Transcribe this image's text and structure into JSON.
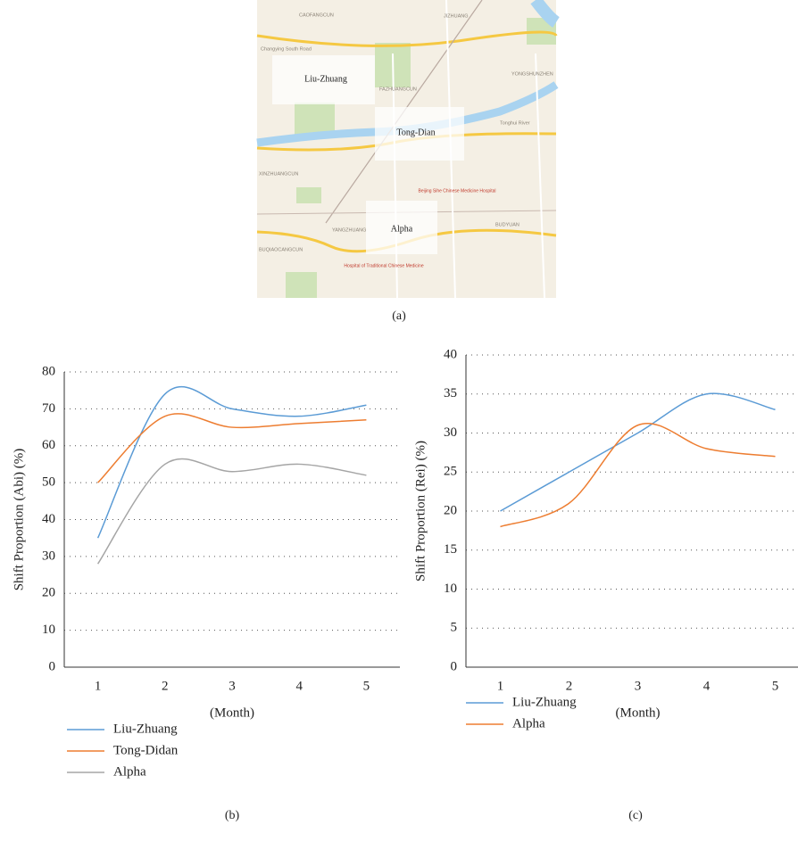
{
  "map": {
    "caption": "(a)",
    "regions": [
      "Liu-Zhuang",
      "Tong-Dian",
      "Alpha"
    ],
    "places": [
      "CAOFANGCUN",
      "JIZHUANG",
      "YONGSHUNZHEN",
      "FAZHUANGCUN",
      "XINZHUANGCUN",
      "BUDYUAN",
      "BUQIAOCANGCUN",
      "YANGZHUANG",
      "Beijing Sihe Chinese Medicine Hospital",
      "Hospital of Traditional Chinese Medicine",
      "Changying South Road",
      "Tonghui River"
    ]
  },
  "chart_data": [
    {
      "type": "line",
      "caption": "(b)",
      "y_label": "Shift Proportion (Abi) (%)",
      "x_label": "(Month)",
      "x": [
        1,
        2,
        3,
        4,
        5
      ],
      "xlim": [
        0.5,
        5.5
      ],
      "xticks": [
        1,
        2,
        3,
        4,
        5
      ],
      "ylim": [
        0,
        80
      ],
      "yticks": [
        0,
        10,
        20,
        30,
        40,
        50,
        60,
        70,
        80
      ],
      "grid": true,
      "smooth": true,
      "legend": "below",
      "series": [
        {
          "name": "Liu-Zhuang",
          "color": "#5b9bd5",
          "values": [
            35,
            74,
            70,
            68,
            71
          ]
        },
        {
          "name": "Tong-Didan",
          "color": "#ed7d31",
          "values": [
            50,
            68,
            65,
            66,
            67
          ]
        },
        {
          "name": "Alpha",
          "color": "#a5a5a5",
          "values": [
            28,
            55,
            53,
            55,
            52
          ]
        }
      ]
    },
    {
      "type": "line",
      "caption": "(c)",
      "y_label": "Shift Proportion (Rei) (%)",
      "x_label": "(Month)",
      "x": [
        1,
        2,
        3,
        4,
        5
      ],
      "xlim": [
        0.5,
        5.5
      ],
      "xticks": [
        1,
        2,
        3,
        4,
        5
      ],
      "ylim": [
        0,
        40
      ],
      "yticks": [
        0,
        5,
        10,
        15,
        20,
        25,
        30,
        35,
        40
      ],
      "grid": true,
      "smooth": true,
      "legend": "below",
      "series": [
        {
          "name": "Liu-Zhuang",
          "color": "#5b9bd5",
          "values": [
            20,
            25,
            30,
            35,
            33
          ]
        },
        {
          "name": "Alpha",
          "color": "#ed7d31",
          "values": [
            18,
            21,
            31,
            28,
            27
          ]
        }
      ]
    }
  ]
}
